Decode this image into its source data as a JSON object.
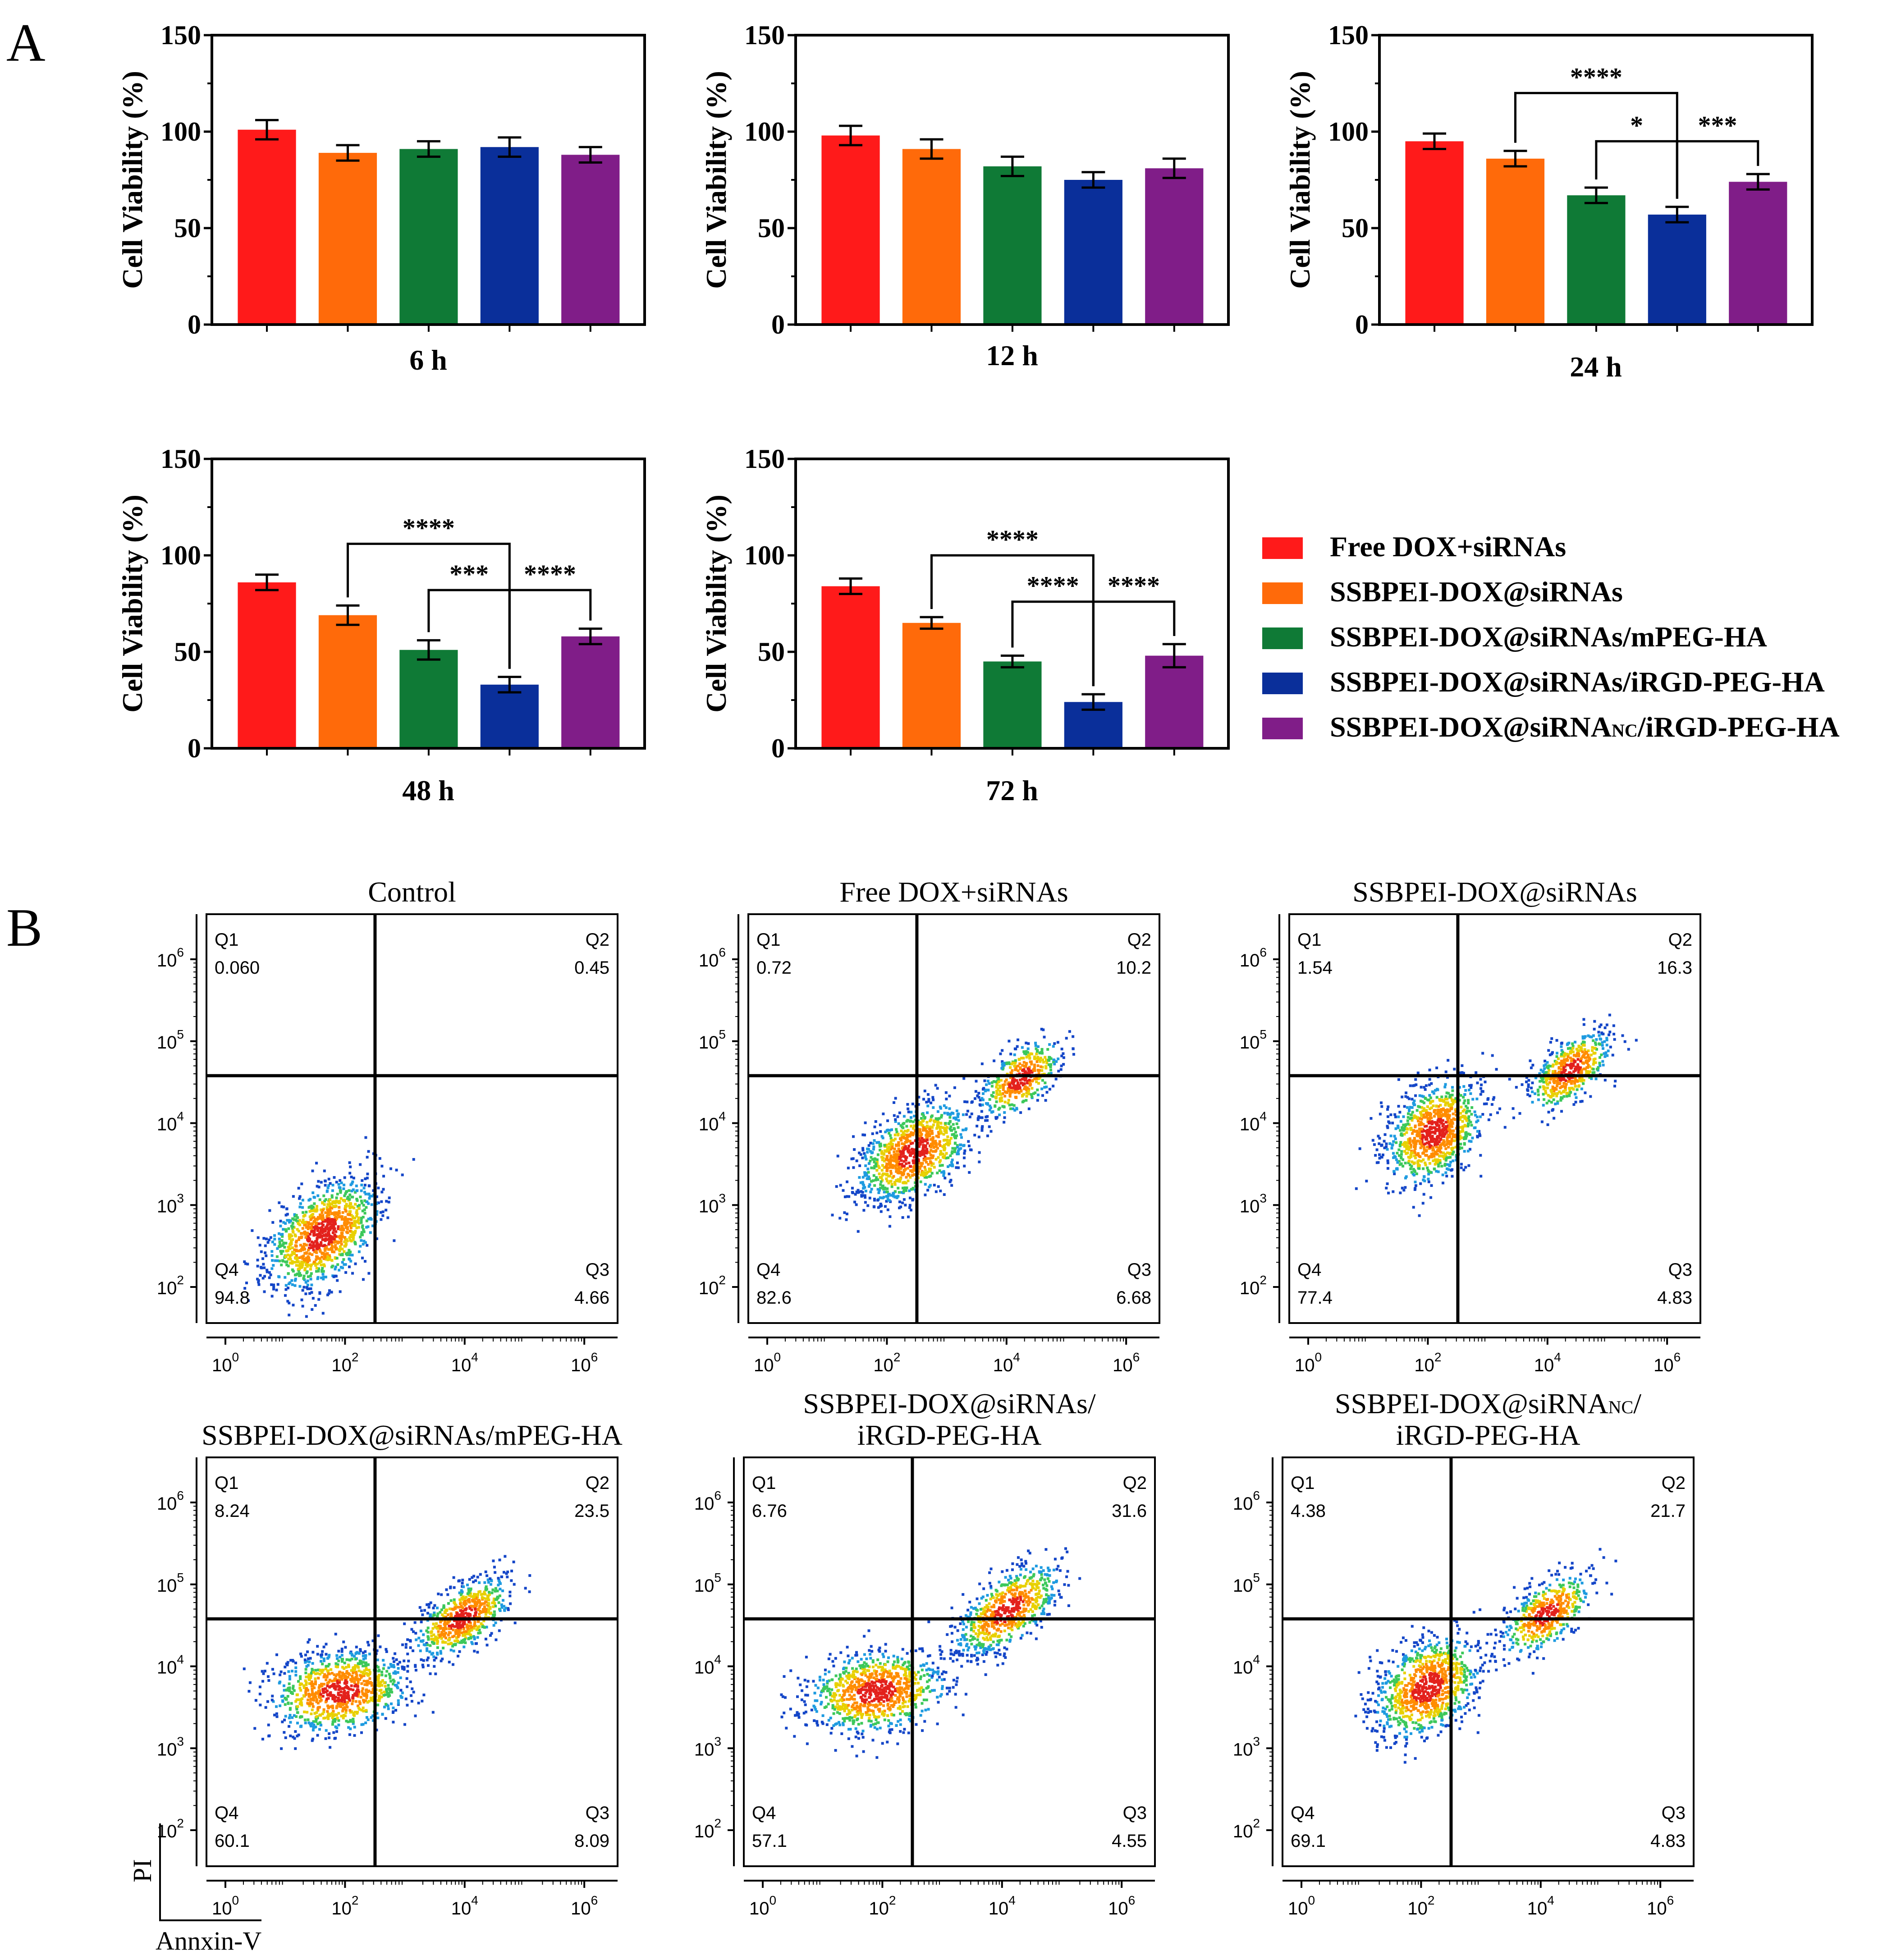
{
  "panel_labels": {
    "a": "A",
    "b": "B"
  },
  "colors": [
    "#ff1a1a",
    "#ff6a0a",
    "#0f7a36",
    "#0a2f9a",
    "#801d88"
  ],
  "legend": [
    "Free DOX+siRNAs",
    "SSBPEI-DOX@siRNAs",
    "SSBPEI-DOX@siRNAs/mPEG-HA",
    "SSBPEI-DOX@siRNAs/iRGD-PEG-HA",
    "SSBPEI-DOX@siRNA<sub>NC</sub>/iRGD-PEG-HA"
  ],
  "legend_parts": {
    "prefix": "SSBPEI-DOX@siRNA",
    "sub": "NC",
    "suffix": "/iRGD-PEG-HA"
  },
  "chart_data": [
    {
      "type": "bar",
      "title": "6 h",
      "ylabel": "Cell Viability (%)",
      "ylim": [
        0,
        150
      ],
      "yticks": [
        "0",
        "50",
        "100",
        "150"
      ],
      "values": [
        101,
        89,
        91,
        92,
        88
      ],
      "errors": [
        5,
        4,
        4,
        5,
        4
      ],
      "sig": []
    },
    {
      "type": "bar",
      "title": "12 h",
      "ylabel": "Cell Viability (%)",
      "ylim": [
        0,
        150
      ],
      "yticks": [
        "0",
        "50",
        "100",
        "150"
      ],
      "values": [
        98,
        91,
        82,
        75,
        81
      ],
      "errors": [
        5,
        5,
        5,
        4,
        5
      ],
      "sig": []
    },
    {
      "type": "bar",
      "title": "24 h",
      "ylabel": "Cell Viability (%)",
      "ylim": [
        0,
        150
      ],
      "yticks": [
        "0",
        "50",
        "100",
        "150"
      ],
      "values": [
        95,
        86,
        67,
        57,
        74
      ],
      "errors": [
        4,
        4,
        4,
        4,
        4
      ],
      "sig": [
        {
          "label": "****",
          "from": 1,
          "to": 3,
          "y": 120
        },
        {
          "label": "*",
          "from": 2,
          "to": 3,
          "y": 95
        },
        {
          "label": "***",
          "from": 3,
          "to": 4,
          "y": 95
        }
      ]
    },
    {
      "type": "bar",
      "title": "48 h",
      "ylabel": "Cell Viability (%)",
      "ylim": [
        0,
        150
      ],
      "yticks": [
        "0",
        "50",
        "100",
        "150"
      ],
      "values": [
        86,
        69,
        51,
        33,
        58
      ],
      "errors": [
        4,
        5,
        5,
        4,
        4
      ],
      "sig": [
        {
          "label": "****",
          "from": 1,
          "to": 3,
          "y": 106
        },
        {
          "label": "***",
          "from": 2,
          "to": 3,
          "y": 82
        },
        {
          "label": "****",
          "from": 3,
          "to": 4,
          "y": 82
        }
      ]
    },
    {
      "type": "bar",
      "title": "72 h",
      "ylabel": "Cell Viability (%)",
      "ylim": [
        0,
        150
      ],
      "yticks": [
        "0",
        "50",
        "100",
        "150"
      ],
      "values": [
        84,
        65,
        45,
        24,
        48
      ],
      "errors": [
        4,
        3,
        3,
        4,
        6
      ],
      "sig": [
        {
          "label": "****",
          "from": 1,
          "to": 3,
          "y": 100
        },
        {
          "label": "****",
          "from": 2,
          "to": 3,
          "y": 76
        },
        {
          "label": "****",
          "from": 3,
          "to": 4,
          "y": 76
        }
      ]
    }
  ],
  "flow": {
    "xlabel": "Annxin-V",
    "ylabel": "PI",
    "quadrant_names": [
      "Q1",
      "Q2",
      "Q3",
      "Q4"
    ],
    "plots": [
      {
        "title": [
          "Control"
        ],
        "q1": "0.060",
        "q2": "0.45",
        "q3": "4.66",
        "q4": "94.8"
      },
      {
        "title": [
          "Free DOX+siRNAs"
        ],
        "q1": "0.72",
        "q2": "10.2",
        "q3": "6.68",
        "q4": "82.6"
      },
      {
        "title": [
          "SSBPEI-DOX@siRNAs"
        ],
        "q1": "1.54",
        "q2": "16.3",
        "q3": "4.83",
        "q4": "77.4"
      },
      {
        "title": [
          "SSBPEI-DOX@siRNAs/mPEG-HA"
        ],
        "q1": "8.24",
        "q2": "23.5",
        "q3": "8.09",
        "q4": "60.1"
      },
      {
        "title": [
          "SSBPEI-DOX@siRNAs/",
          "iRGD-PEG-HA"
        ],
        "q1": "6.76",
        "q2": "31.6",
        "q3": "4.55",
        "q4": "57.1"
      },
      {
        "title": [
          "SSBPEI-DOX@siRNA<sub>NC</sub>/",
          "iRGD-PEG-HA"
        ],
        "q1": "4.38",
        "q2": "21.7",
        "q3": "4.83",
        "q4": "69.1"
      }
    ],
    "axis_base": "10",
    "ytick_exponents": [
      "2",
      "3",
      "4",
      "5",
      "6"
    ],
    "xtick_exponents": [
      "0",
      "2",
      "4",
      "6"
    ]
  }
}
